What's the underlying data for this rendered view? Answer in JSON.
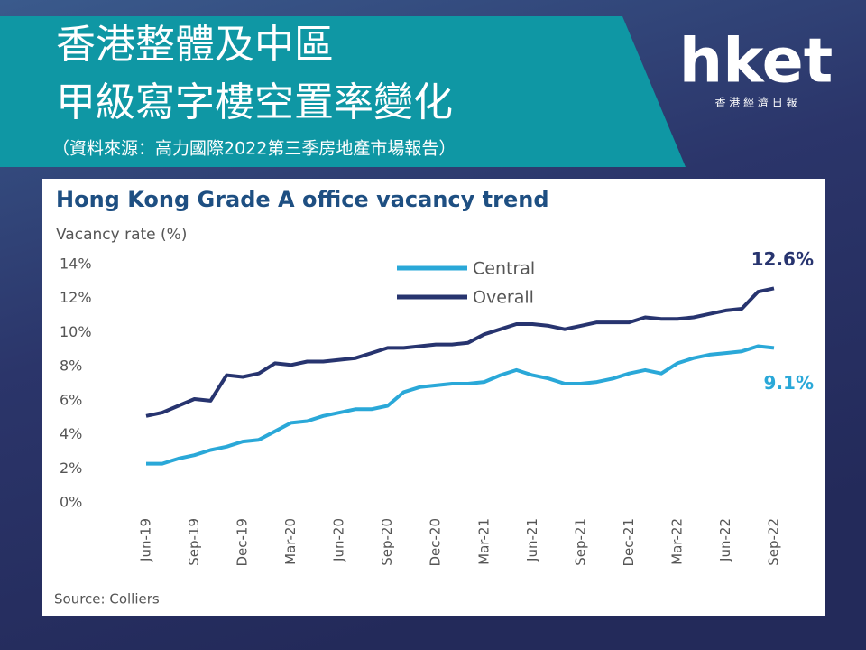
{
  "header": {
    "title_lines": [
      "香港整體及中區",
      "甲級寫字樓空置率變化"
    ],
    "source": "（資料來源：高力國際2022第三季房地產市場報告）"
  },
  "logo": {
    "name": "hket",
    "subtitle": "香 港 經 濟 日 報"
  },
  "chart_data": {
    "type": "line",
    "title": "Hong Kong Grade A office vacancy trend",
    "y_label": "Vacancy rate (%)",
    "source": "Source: Colliers",
    "categories": [
      "Jun-19",
      null,
      null,
      "Sep-19",
      null,
      null,
      "Dec-19",
      null,
      null,
      "Mar-20",
      null,
      null,
      "Jun-20",
      null,
      null,
      "Sep-20",
      null,
      null,
      "Dec-20",
      null,
      null,
      "Mar-21",
      null,
      null,
      "Jun-21",
      null,
      null,
      "Sep-21",
      null,
      null,
      "Dec-21",
      null,
      null,
      "Mar-22",
      null,
      null,
      "Jun-22",
      null,
      null,
      "Sep-22"
    ],
    "series": [
      {
        "name": "Central",
        "color": "#2aa8d8",
        "values": [
          2.3,
          2.3,
          2.6,
          2.8,
          3.1,
          3.3,
          3.6,
          3.7,
          4.2,
          4.7,
          4.8,
          5.1,
          5.3,
          5.5,
          5.5,
          5.7,
          6.5,
          6.8,
          6.9,
          7.0,
          7.0,
          7.1,
          7.5,
          7.8,
          7.5,
          7.3,
          7.0,
          7.0,
          7.1,
          7.3,
          7.6,
          7.8,
          7.6,
          8.2,
          8.5,
          8.7,
          8.8,
          8.9,
          9.2,
          9.1
        ],
        "value_labels": [
          null,
          null,
          null,
          null,
          null,
          null,
          null,
          null,
          null,
          null,
          null,
          null,
          null,
          null,
          null,
          null,
          null,
          null,
          null,
          null,
          null,
          null,
          null,
          null,
          null,
          null,
          null,
          null,
          null,
          null,
          null,
          null,
          null,
          null,
          null,
          null,
          null,
          null,
          null,
          "9.1%"
        ]
      },
      {
        "name": "Overall",
        "color": "#27346f",
        "values": [
          5.1,
          5.3,
          5.7,
          6.1,
          6.0,
          7.5,
          7.4,
          7.6,
          8.2,
          8.1,
          8.3,
          8.3,
          8.4,
          8.5,
          8.8,
          9.1,
          9.1,
          9.2,
          9.3,
          9.3,
          9.4,
          9.9,
          10.2,
          10.5,
          10.5,
          10.4,
          10.2,
          10.4,
          10.6,
          10.6,
          10.6,
          10.9,
          10.8,
          10.8,
          10.9,
          11.1,
          11.3,
          11.4,
          12.4,
          12.6
        ],
        "value_labels": [
          null,
          null,
          null,
          null,
          null,
          null,
          null,
          null,
          null,
          null,
          null,
          null,
          null,
          null,
          null,
          null,
          null,
          null,
          null,
          null,
          null,
          null,
          null,
          null,
          null,
          null,
          null,
          null,
          null,
          null,
          null,
          null,
          null,
          null,
          null,
          null,
          null,
          null,
          null,
          "12.6%"
        ]
      }
    ],
    "ylim": [
      0,
      14
    ],
    "yticks": [
      {
        "value": 0,
        "label": "0%"
      },
      {
        "value": 2,
        "label": "2%"
      },
      {
        "value": 4,
        "label": "4%"
      },
      {
        "value": 6,
        "label": "6%"
      },
      {
        "value": 8,
        "label": "8%"
      },
      {
        "value": 10,
        "label": "10%"
      },
      {
        "value": 12,
        "label": "12%"
      },
      {
        "value": 14,
        "label": "14%"
      }
    ],
    "grid": false,
    "legend": "top"
  }
}
